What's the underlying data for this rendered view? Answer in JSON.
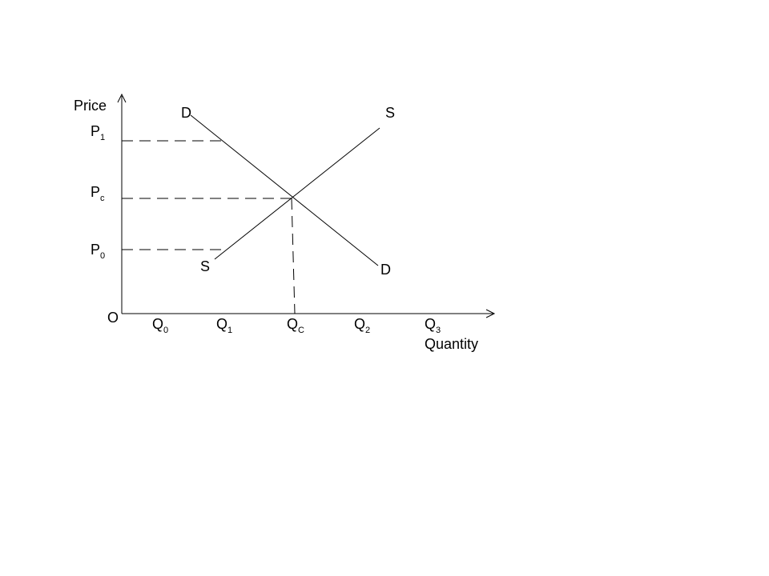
{
  "axes": {
    "y_label": "Price",
    "x_label": "Quantity",
    "origin": "O"
  },
  "curves": {
    "demand_top": "D",
    "demand_bottom": "D",
    "supply_top": "S",
    "supply_bottom": "S"
  },
  "price_ticks": [
    {
      "base": "P",
      "sub": "1"
    },
    {
      "base": "P",
      "sub": "c"
    },
    {
      "base": "P",
      "sub": "0"
    }
  ],
  "quantity_ticks": [
    {
      "base": "Q",
      "sub": "0"
    },
    {
      "base": "Q",
      "sub": "1"
    },
    {
      "base": "Q",
      "sub": "C"
    },
    {
      "base": "Q",
      "sub": "2"
    },
    {
      "base": "Q",
      "sub": "3"
    }
  ],
  "colors": {
    "line": "#000000",
    "background": "#ffffff"
  }
}
